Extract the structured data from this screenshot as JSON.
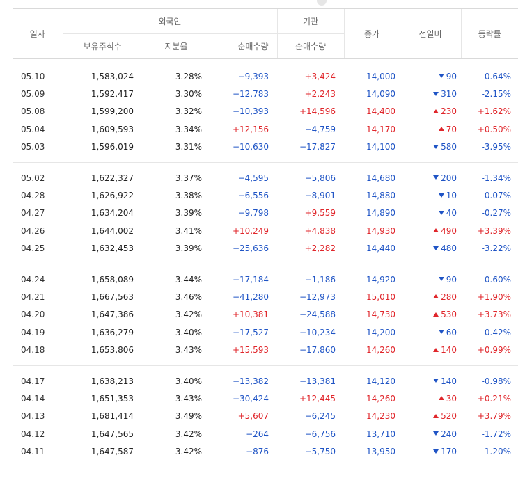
{
  "header": {
    "date": "일자",
    "foreign": "외국인",
    "institution": "기관",
    "holdings": "보유주식수",
    "ratio": "지분율",
    "foreign_net": "순매수량",
    "inst_net": "순매수량",
    "close": "종가",
    "change": "전일비",
    "rate": "등락률"
  },
  "colors": {
    "up": "#e0262b",
    "down": "#1f54c5",
    "neutral": "#222222"
  },
  "groups": [
    {
      "rows": [
        {
          "date": "05.10",
          "holdings": "1,583,024",
          "ratio": "3.28%",
          "foreign_net": "−9,393",
          "inst_net": "+3,424",
          "close": "14,000",
          "change": "90",
          "rate": "-0.64%",
          "dir": "down"
        },
        {
          "date": "05.09",
          "holdings": "1,592,417",
          "ratio": "3.30%",
          "foreign_net": "−12,783",
          "inst_net": "+2,243",
          "close": "14,090",
          "change": "310",
          "rate": "-2.15%",
          "dir": "down"
        },
        {
          "date": "05.08",
          "holdings": "1,599,200",
          "ratio": "3.32%",
          "foreign_net": "−10,393",
          "inst_net": "+14,596",
          "close": "14,400",
          "change": "230",
          "rate": "+1.62%",
          "dir": "up"
        },
        {
          "date": "05.04",
          "holdings": "1,609,593",
          "ratio": "3.34%",
          "foreign_net": "+12,156",
          "inst_net": "−4,759",
          "close": "14,170",
          "change": "70",
          "rate": "+0.50%",
          "dir": "up"
        },
        {
          "date": "05.03",
          "holdings": "1,596,019",
          "ratio": "3.31%",
          "foreign_net": "−10,630",
          "inst_net": "−17,827",
          "close": "14,100",
          "change": "580",
          "rate": "-3.95%",
          "dir": "down"
        }
      ]
    },
    {
      "rows": [
        {
          "date": "05.02",
          "holdings": "1,622,327",
          "ratio": "3.37%",
          "foreign_net": "−4,595",
          "inst_net": "−5,806",
          "close": "14,680",
          "change": "200",
          "rate": "-1.34%",
          "dir": "down"
        },
        {
          "date": "04.28",
          "holdings": "1,626,922",
          "ratio": "3.38%",
          "foreign_net": "−6,556",
          "inst_net": "−8,901",
          "close": "14,880",
          "change": "10",
          "rate": "-0.07%",
          "dir": "down"
        },
        {
          "date": "04.27",
          "holdings": "1,634,204",
          "ratio": "3.39%",
          "foreign_net": "−9,798",
          "inst_net": "+9,559",
          "close": "14,890",
          "change": "40",
          "rate": "-0.27%",
          "dir": "down"
        },
        {
          "date": "04.26",
          "holdings": "1,644,002",
          "ratio": "3.41%",
          "foreign_net": "+10,249",
          "inst_net": "+4,838",
          "close": "14,930",
          "change": "490",
          "rate": "+3.39%",
          "dir": "up"
        },
        {
          "date": "04.25",
          "holdings": "1,632,453",
          "ratio": "3.39%",
          "foreign_net": "−25,636",
          "inst_net": "+2,282",
          "close": "14,440",
          "change": "480",
          "rate": "-3.22%",
          "dir": "down"
        }
      ]
    },
    {
      "rows": [
        {
          "date": "04.24",
          "holdings": "1,658,089",
          "ratio": "3.44%",
          "foreign_net": "−17,184",
          "inst_net": "−1,186",
          "close": "14,920",
          "change": "90",
          "rate": "-0.60%",
          "dir": "down"
        },
        {
          "date": "04.21",
          "holdings": "1,667,563",
          "ratio": "3.46%",
          "foreign_net": "−41,280",
          "inst_net": "−12,973",
          "close": "15,010",
          "change": "280",
          "rate": "+1.90%",
          "dir": "up"
        },
        {
          "date": "04.20",
          "holdings": "1,647,386",
          "ratio": "3.42%",
          "foreign_net": "+10,381",
          "inst_net": "−24,588",
          "close": "14,730",
          "change": "530",
          "rate": "+3.73%",
          "dir": "up"
        },
        {
          "date": "04.19",
          "holdings": "1,636,279",
          "ratio": "3.40%",
          "foreign_net": "−17,527",
          "inst_net": "−10,234",
          "close": "14,200",
          "change": "60",
          "rate": "-0.42%",
          "dir": "down"
        },
        {
          "date": "04.18",
          "holdings": "1,653,806",
          "ratio": "3.43%",
          "foreign_net": "+15,593",
          "inst_net": "−17,860",
          "close": "14,260",
          "change": "140",
          "rate": "+0.99%",
          "dir": "up"
        }
      ]
    },
    {
      "rows": [
        {
          "date": "04.17",
          "holdings": "1,638,213",
          "ratio": "3.40%",
          "foreign_net": "−13,382",
          "inst_net": "−13,381",
          "close": "14,120",
          "change": "140",
          "rate": "-0.98%",
          "dir": "down"
        },
        {
          "date": "04.14",
          "holdings": "1,651,353",
          "ratio": "3.43%",
          "foreign_net": "−30,424",
          "inst_net": "+12,445",
          "close": "14,260",
          "change": "30",
          "rate": "+0.21%",
          "dir": "up"
        },
        {
          "date": "04.13",
          "holdings": "1,681,414",
          "ratio": "3.49%",
          "foreign_net": "+5,607",
          "inst_net": "−6,245",
          "close": "14,230",
          "change": "520",
          "rate": "+3.79%",
          "dir": "up"
        },
        {
          "date": "04.12",
          "holdings": "1,647,565",
          "ratio": "3.42%",
          "foreign_net": "−264",
          "inst_net": "−6,756",
          "close": "13,710",
          "change": "240",
          "rate": "-1.72%",
          "dir": "down"
        },
        {
          "date": "04.11",
          "holdings": "1,647,587",
          "ratio": "3.42%",
          "foreign_net": "−876",
          "inst_net": "−5,750",
          "close": "13,950",
          "change": "170",
          "rate": "-1.20%",
          "dir": "down"
        }
      ]
    }
  ]
}
